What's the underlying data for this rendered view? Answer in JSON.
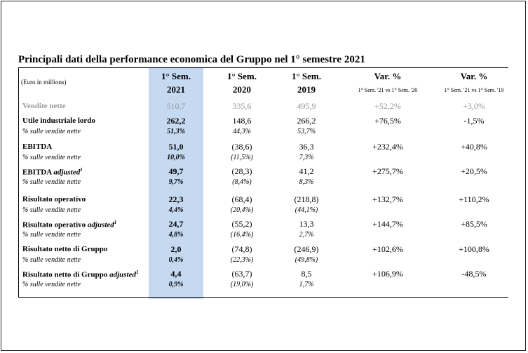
{
  "title": "Principali dati della performance economica del Gruppo nel 1° semestre 2021",
  "unit_label": "(Euro in millions)",
  "headers": [
    {
      "line1": "1° Sem.",
      "line2": "2021"
    },
    {
      "line1": "1° Sem.",
      "line2": "2020"
    },
    {
      "line1": "1° Sem.",
      "line2": "2019"
    },
    {
      "line1": "Var. %",
      "line2": "1° Sem. '21 vs 1° Sem. '20"
    },
    {
      "line1": "Var. %",
      "line2": "1° Sem. '21 vs 1° Sem. '19"
    }
  ],
  "pct_label": "% sulle vendite nette",
  "rows": [
    {
      "label": "Vendite nette",
      "adj": "",
      "sup": "",
      "values": [
        "510,7",
        "335,6",
        "495,9",
        "+52,2%",
        "+3,0%"
      ],
      "pct": []
    },
    {
      "label": "Utile industriale lordo",
      "adj": "",
      "sup": "",
      "values": [
        "262,2",
        "148,6",
        "266,2",
        "+76,5%",
        "-1,5%"
      ],
      "pct": [
        "51,3%",
        "44,3%",
        "53,7%"
      ]
    },
    {
      "label": "EBITDA",
      "adj": "",
      "sup": "",
      "values": [
        "51,0",
        "(38,6)",
        "36,3",
        "+232,4%",
        "+40,8%"
      ],
      "pct": [
        "10,0%",
        "(11,5%)",
        "7,3%"
      ]
    },
    {
      "label": "EBITDA",
      "adj": "adjusted",
      "sup": "1",
      "values": [
        "49,7",
        "(28,3)",
        "41,2",
        "+275,7%",
        "+20,5%"
      ],
      "pct": [
        "9,7%",
        "(8,4%)",
        "8,3%"
      ]
    },
    {
      "label": "Risultato operativo",
      "adj": "",
      "sup": "",
      "values": [
        "22,3",
        "(68,4)",
        "(218,8)",
        "+132,7%",
        "+110,2%"
      ],
      "pct": [
        "4,4%",
        "(20,4%)",
        "(44,1%)"
      ]
    },
    {
      "label": "Risultato operativo",
      "adj": "adjusted",
      "sup": "1",
      "values": [
        "24,7",
        "(55,2)",
        "13,3",
        "+144,7%",
        "+85,5%"
      ],
      "pct": [
        "4,8%",
        "(16,4%)",
        "2,7%"
      ]
    },
    {
      "label": "Risultato netto di Gruppo",
      "adj": "",
      "sup": "",
      "values": [
        "2,0",
        "(74,8)",
        "(246,9)",
        "+102,6%",
        "+100,8%"
      ],
      "pct": [
        "0,4%",
        "(22,3%)",
        "(49,8%)"
      ]
    },
    {
      "label": "Risultato netto di Gruppo",
      "adj": "adjusted",
      "sup": "1",
      "values": [
        "4,4",
        "(63,7)",
        "8,5",
        "+106,9%",
        "-48,5%"
      ],
      "pct": [
        "0,9%",
        "(19,0%)",
        "1,7%"
      ]
    }
  ]
}
